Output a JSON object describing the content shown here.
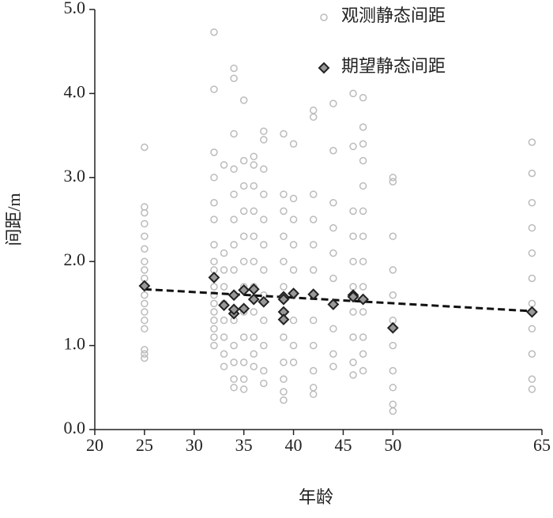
{
  "chart_data": {
    "type": "scatter",
    "ylabel": "间距/m",
    "xlabel": "年龄",
    "xlim": [
      20,
      65
    ],
    "xticks": [
      20,
      25,
      30,
      35,
      40,
      45,
      50,
      65
    ],
    "ylim": [
      0,
      5
    ],
    "yticks": [
      {
        "value": 0,
        "label": "0.0"
      },
      {
        "value": 1,
        "label": "1.0"
      },
      {
        "value": 2,
        "label": "2.0"
      },
      {
        "value": 3,
        "label": "3.0"
      },
      {
        "value": 4,
        "label": "4.0"
      },
      {
        "value": 5,
        "label": "5.0"
      }
    ],
    "legend": "upper right",
    "series": [
      {
        "name": "观测静态间距",
        "color": "#bbbbbb",
        "marker": "circle",
        "x": [
          25,
          25,
          25,
          25,
          25,
          25,
          25,
          25,
          25,
          25,
          25,
          25,
          25,
          25,
          25,
          25,
          25,
          25,
          32,
          32,
          32,
          32,
          32,
          32,
          32,
          32,
          32,
          32,
          32,
          32,
          32,
          32,
          32,
          32,
          32,
          32,
          33,
          33,
          33,
          33,
          33,
          33,
          33,
          33,
          33,
          34,
          34,
          34,
          34,
          34,
          34,
          34,
          34,
          34,
          34,
          34,
          34,
          34,
          34,
          35,
          35,
          35,
          35,
          35,
          35,
          35,
          35,
          35,
          35,
          35,
          35,
          36,
          36,
          36,
          36,
          36,
          36,
          36,
          36,
          36,
          36,
          36,
          37,
          37,
          37,
          37,
          37,
          37,
          37,
          37,
          37,
          37,
          37,
          37,
          39,
          39,
          39,
          39,
          39,
          39,
          39,
          39,
          39,
          39,
          39,
          39,
          40,
          40,
          40,
          40,
          40,
          40,
          40,
          40,
          40,
          42,
          42,
          42,
          42,
          42,
          42,
          42,
          42,
          42,
          42,
          42,
          42,
          44,
          44,
          44,
          44,
          44,
          44,
          44,
          44,
          44,
          44,
          46,
          46,
          46,
          46,
          46,
          46,
          46,
          46,
          46,
          46,
          47,
          47,
          47,
          47,
          47,
          47,
          47,
          47,
          47,
          47,
          47,
          47,
          47,
          50,
          50,
          50,
          50,
          50,
          50,
          50,
          50,
          50,
          50,
          50,
          64,
          64,
          64,
          64,
          64,
          64,
          64,
          64,
          64,
          64,
          64
        ],
        "values": [
          3.36,
          2.65,
          2.58,
          2.45,
          2.3,
          2.15,
          2.0,
          1.9,
          1.8,
          1.7,
          1.6,
          1.5,
          1.4,
          1.3,
          1.2,
          0.95,
          0.9,
          0.85,
          4.73,
          4.05,
          3.3,
          3.0,
          2.7,
          2.5,
          2.2,
          2.0,
          1.9,
          1.8,
          1.7,
          1.6,
          1.5,
          1.4,
          1.3,
          1.2,
          1.1,
          1.0,
          3.15,
          2.1,
          1.9,
          1.7,
          1.5,
          1.3,
          1.1,
          0.9,
          0.75,
          4.3,
          4.18,
          3.52,
          3.1,
          2.8,
          2.5,
          2.2,
          1.9,
          1.6,
          1.3,
          1.0,
          0.8,
          0.6,
          0.5,
          3.92,
          3.2,
          2.9,
          2.6,
          2.3,
          2.0,
          1.7,
          1.4,
          1.1,
          0.8,
          0.6,
          0.48,
          3.25,
          3.15,
          2.9,
          2.6,
          2.3,
          2.0,
          1.7,
          1.4,
          1.1,
          0.9,
          0.75,
          3.55,
          3.45,
          3.1,
          2.8,
          2.5,
          2.2,
          1.9,
          1.6,
          1.3,
          1.0,
          0.7,
          0.55,
          3.52,
          2.8,
          2.6,
          2.3,
          2.0,
          1.7,
          1.4,
          1.1,
          0.8,
          0.6,
          0.45,
          0.35,
          3.4,
          2.75,
          2.5,
          2.2,
          1.9,
          1.6,
          1.3,
          1.0,
          0.8,
          3.8,
          3.72,
          2.8,
          2.5,
          2.2,
          1.9,
          1.6,
          1.3,
          1.0,
          0.7,
          0.5,
          0.42,
          3.88,
          3.32,
          2.7,
          2.4,
          2.1,
          1.8,
          1.5,
          1.2,
          0.9,
          0.75,
          4.0,
          3.37,
          2.6,
          2.3,
          2.0,
          1.7,
          1.4,
          1.1,
          0.8,
          0.65,
          3.95,
          3.6,
          3.4,
          3.2,
          2.9,
          2.6,
          2.3,
          2.0,
          1.7,
          1.4,
          1.1,
          0.9,
          0.7,
          3.0,
          2.95,
          2.3,
          1.9,
          1.6,
          1.3,
          1.0,
          0.7,
          0.5,
          0.3,
          0.22,
          3.42,
          3.05,
          2.7,
          2.4,
          2.1,
          1.8,
          1.5,
          1.2,
          0.9,
          0.6,
          0.48
        ]
      },
      {
        "name": "期望静态间距",
        "color": "#222222",
        "marker": "diamond",
        "x": [
          25,
          32,
          33,
          34,
          34,
          34,
          35,
          35,
          36,
          36,
          37,
          39,
          39,
          39,
          39,
          40,
          42,
          44,
          46,
          46,
          47,
          50,
          64
        ],
        "values": [
          1.71,
          1.81,
          1.48,
          1.6,
          1.38,
          1.43,
          1.66,
          1.44,
          1.67,
          1.55,
          1.52,
          1.58,
          1.4,
          1.31,
          1.55,
          1.62,
          1.61,
          1.49,
          1.6,
          1.58,
          1.55,
          1.21,
          1.4
        ]
      }
    ],
    "trend": {
      "x": [
        25,
        64
      ],
      "values": [
        1.67,
        1.41
      ]
    }
  }
}
